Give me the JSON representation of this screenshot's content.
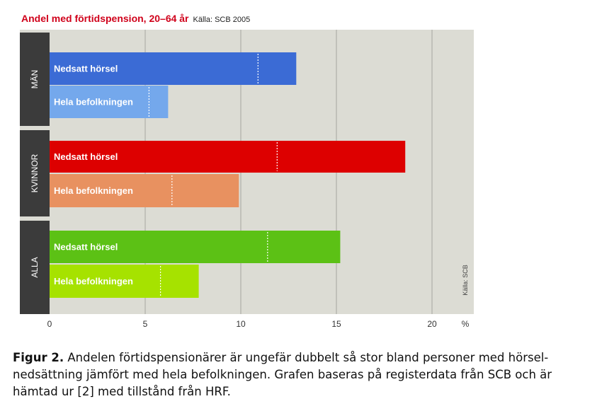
{
  "title": "Andel med förtidspension, 20–64 år",
  "source": "Källa: SCB 2005",
  "side_source": "Källa: SCB",
  "chart_data": {
    "type": "bar",
    "orientation": "horizontal",
    "title": "Andel med förtidspension, 20–64 år",
    "source": "Källa: SCB 2005",
    "unit": "%",
    "xlim": [
      0,
      22
    ],
    "xticks": [
      "0",
      "5",
      "10",
      "15",
      "20"
    ],
    "xtick_values": [
      0,
      5,
      10,
      15,
      20
    ],
    "grid": true,
    "groups": [
      {
        "label": "MÄN",
        "bars": [
          {
            "label": "Nedsatt hörsel",
            "value": 12.9,
            "marker": 10.9,
            "color": "#3b6bd5"
          },
          {
            "label": "Hela befolkningen",
            "value": 6.2,
            "marker": 5.2,
            "color": "#74a8ec"
          }
        ]
      },
      {
        "label": "KVINNOR",
        "bars": [
          {
            "label": "Nedsatt hörsel",
            "value": 18.6,
            "marker": 11.9,
            "color": "#dd0000"
          },
          {
            "label": "Hela befolkningen",
            "value": 9.9,
            "marker": 6.4,
            "color": "#e89160"
          }
        ]
      },
      {
        "label": "ALLA",
        "bars": [
          {
            "label": "Nedsatt hörsel",
            "value": 15.2,
            "marker": 11.4,
            "color": "#5cc115"
          },
          {
            "label": "Hela befolkningen",
            "value": 7.8,
            "marker": 5.8,
            "color": "#a6e200"
          }
        ]
      }
    ]
  },
  "caption": {
    "label": "Figur 2.",
    "text": " Andelen förtidspensionärer är ungefär dubbelt så stor bland personer med hörsel-nedsättning jämfört med hela befolkningen. Grafen baseras på registerdata från SCB och är hämtad ur [2] med tillstånd från HRF."
  }
}
